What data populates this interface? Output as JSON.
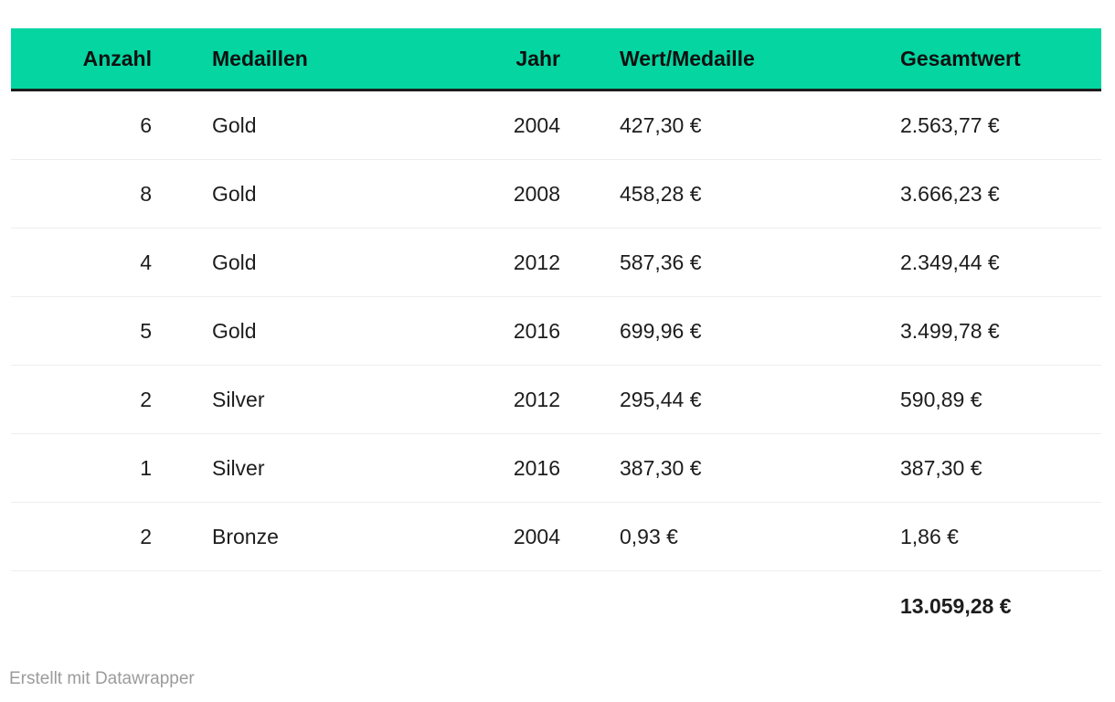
{
  "colors": {
    "header_bg": "#04d5a1",
    "header_border": "#1c1c1c",
    "row_divider": "#eeeeee",
    "body_text": "#1d1d1d",
    "footer_text": "#9b9b9b",
    "background": "#ffffff"
  },
  "table": {
    "columns": [
      {
        "label": "Anzahl",
        "align": "right"
      },
      {
        "label": "Medaillen",
        "align": "left"
      },
      {
        "label": "Jahr",
        "align": "right"
      },
      {
        "label": "Wert/Medaille",
        "align": "left"
      },
      {
        "label": "Gesamtwert",
        "align": "left"
      }
    ],
    "rows": [
      [
        "6",
        "Gold",
        "2004",
        "427,30 €",
        "2.563,77 €"
      ],
      [
        "8",
        "Gold",
        "2008",
        "458,28 €",
        "3.666,23 €"
      ],
      [
        "4",
        "Gold",
        "2012",
        "587,36 €",
        "2.349,44 €"
      ],
      [
        "5",
        "Gold",
        "2016",
        "699,96 €",
        "3.499,78 €"
      ],
      [
        "2",
        "Silver",
        "2012",
        "295,44 €",
        "590,89 €"
      ],
      [
        "1",
        "Silver",
        "2016",
        "387,30 €",
        "387,30 €"
      ],
      [
        "2",
        "Bronze",
        "2004",
        "0,93 €",
        "1,86 €"
      ]
    ],
    "total": {
      "gesamtwert": "13.059,28 €"
    }
  },
  "footer": {
    "credit": "Erstellt mit Datawrapper"
  },
  "chart_data": {
    "type": "table",
    "title": "",
    "columns": [
      "Anzahl",
      "Medaillen",
      "Jahr",
      "Wert/Medaille",
      "Gesamtwert"
    ],
    "rows": [
      {
        "anzahl": 6,
        "medaillen": "Gold",
        "jahr": 2004,
        "wert_pro_medaille_eur": 427.3,
        "gesamtwert_eur": 2563.77
      },
      {
        "anzahl": 8,
        "medaillen": "Gold",
        "jahr": 2008,
        "wert_pro_medaille_eur": 458.28,
        "gesamtwert_eur": 3666.23
      },
      {
        "anzahl": 4,
        "medaillen": "Gold",
        "jahr": 2012,
        "wert_pro_medaille_eur": 587.36,
        "gesamtwert_eur": 2349.44
      },
      {
        "anzahl": 5,
        "medaillen": "Gold",
        "jahr": 2016,
        "wert_pro_medaille_eur": 699.96,
        "gesamtwert_eur": 3499.78
      },
      {
        "anzahl": 2,
        "medaillen": "Silver",
        "jahr": 2012,
        "wert_pro_medaille_eur": 295.44,
        "gesamtwert_eur": 590.89
      },
      {
        "anzahl": 1,
        "medaillen": "Silver",
        "jahr": 2016,
        "wert_pro_medaille_eur": 387.3,
        "gesamtwert_eur": 387.3
      },
      {
        "anzahl": 2,
        "medaillen": "Bronze",
        "jahr": 2004,
        "wert_pro_medaille_eur": 0.93,
        "gesamtwert_eur": 1.86
      }
    ],
    "total_gesamtwert_eur": 13059.28,
    "credit": "Erstellt mit Datawrapper"
  }
}
